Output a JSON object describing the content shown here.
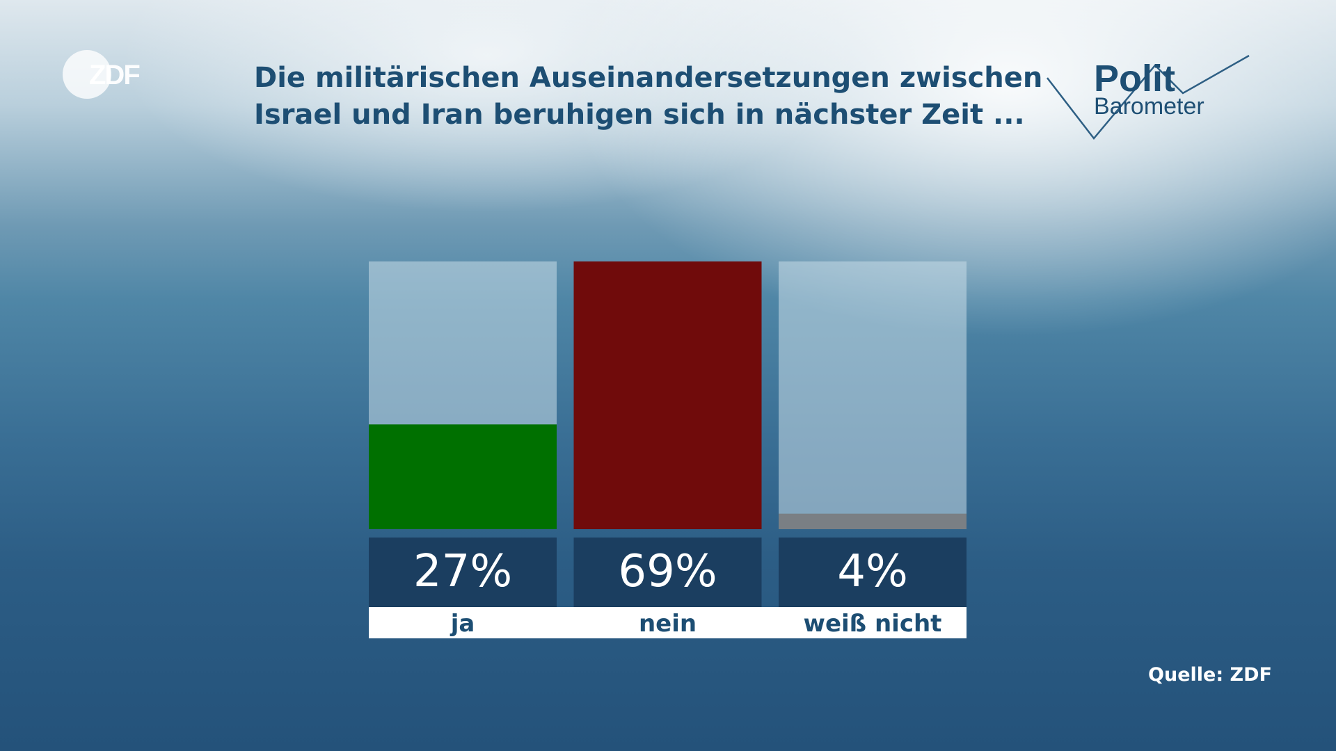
{
  "logo": {
    "text": "ZDF"
  },
  "title": {
    "line1": "Die militärischen Auseinandersetzungen zwischen",
    "line2": "Israel und Iran beruhigen sich in nächster Zeit ..."
  },
  "brand": {
    "line1": "Polit",
    "line2": "Barometer"
  },
  "source": "Quelle: ZDF",
  "chart_data": {
    "type": "bar",
    "categories": [
      "ja",
      "nein",
      "weiß nicht"
    ],
    "values": [
      27,
      69,
      4
    ],
    "value_labels": [
      "27%",
      "69%",
      "4%"
    ],
    "ylim": [
      0,
      69
    ],
    "colors": [
      "#007000",
      "#700b0b",
      "#7a7f84"
    ],
    "track_color": "rgba(200,220,232,0.55)",
    "label_box_color": "#1b3e60",
    "category_band_color": "#ffffff",
    "grid": false
  }
}
